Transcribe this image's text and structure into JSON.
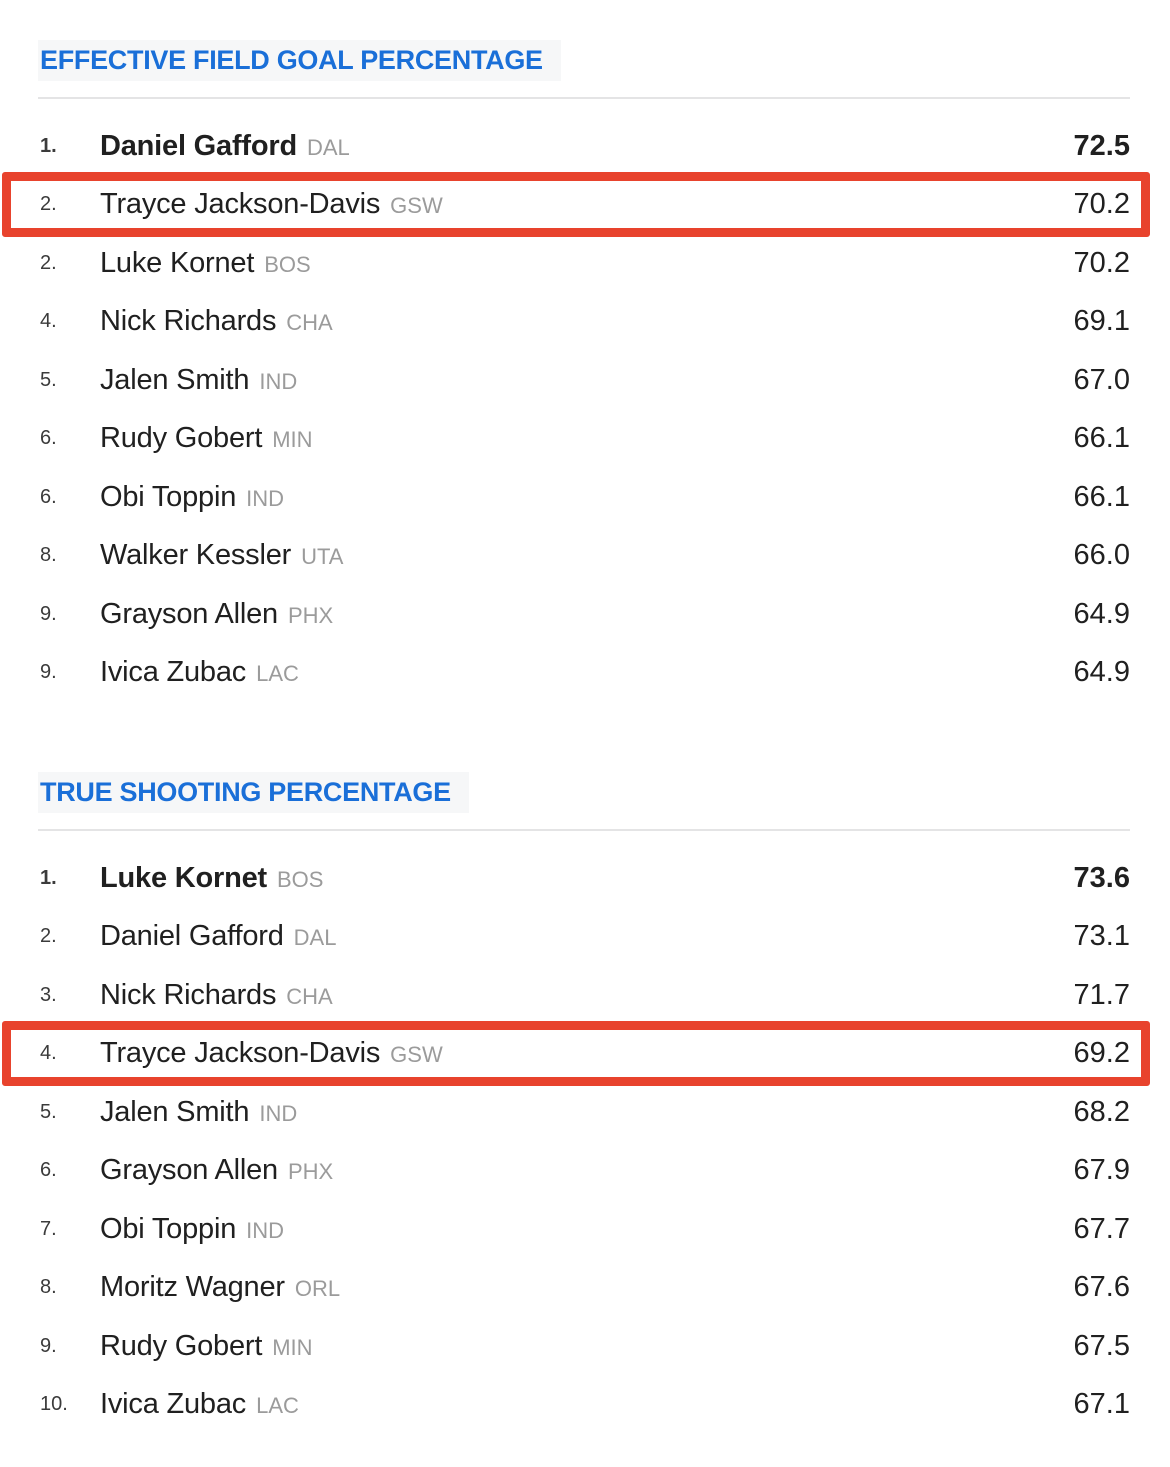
{
  "colors": {
    "accent_blue": "#1a6fd8",
    "highlight_red": "#e8432d",
    "team_gray": "#9b9b9b",
    "divider_gray": "#e4e4e5"
  },
  "sections": [
    {
      "title": "EFFECTIVE FIELD GOAL PERCENTAGE",
      "rows": [
        {
          "rank": "1.",
          "name": "Daniel Gafford",
          "team": "DAL",
          "value": "72.5",
          "emphasis": true,
          "highlighted": false
        },
        {
          "rank": "2.",
          "name": "Trayce Jackson-Davis",
          "team": "GSW",
          "value": "70.2",
          "emphasis": false,
          "highlighted": true
        },
        {
          "rank": "2.",
          "name": "Luke Kornet",
          "team": "BOS",
          "value": "70.2",
          "emphasis": false,
          "highlighted": false
        },
        {
          "rank": "4.",
          "name": "Nick Richards",
          "team": "CHA",
          "value": "69.1",
          "emphasis": false,
          "highlighted": false
        },
        {
          "rank": "5.",
          "name": "Jalen Smith",
          "team": "IND",
          "value": "67.0",
          "emphasis": false,
          "highlighted": false
        },
        {
          "rank": "6.",
          "name": "Rudy Gobert",
          "team": "MIN",
          "value": "66.1",
          "emphasis": false,
          "highlighted": false
        },
        {
          "rank": "6.",
          "name": "Obi Toppin",
          "team": "IND",
          "value": "66.1",
          "emphasis": false,
          "highlighted": false
        },
        {
          "rank": "8.",
          "name": "Walker Kessler",
          "team": "UTA",
          "value": "66.0",
          "emphasis": false,
          "highlighted": false
        },
        {
          "rank": "9.",
          "name": "Grayson Allen",
          "team": "PHX",
          "value": "64.9",
          "emphasis": false,
          "highlighted": false
        },
        {
          "rank": "9.",
          "name": "Ivica Zubac",
          "team": "LAC",
          "value": "64.9",
          "emphasis": false,
          "highlighted": false
        }
      ]
    },
    {
      "title": "TRUE SHOOTING PERCENTAGE",
      "rows": [
        {
          "rank": "1.",
          "name": "Luke Kornet",
          "team": "BOS",
          "value": "73.6",
          "emphasis": true,
          "highlighted": false
        },
        {
          "rank": "2.",
          "name": "Daniel Gafford",
          "team": "DAL",
          "value": "73.1",
          "emphasis": false,
          "highlighted": false
        },
        {
          "rank": "3.",
          "name": "Nick Richards",
          "team": "CHA",
          "value": "71.7",
          "emphasis": false,
          "highlighted": false
        },
        {
          "rank": "4.",
          "name": "Trayce Jackson-Davis",
          "team": "GSW",
          "value": "69.2",
          "emphasis": false,
          "highlighted": true
        },
        {
          "rank": "5.",
          "name": "Jalen Smith",
          "team": "IND",
          "value": "68.2",
          "emphasis": false,
          "highlighted": false
        },
        {
          "rank": "6.",
          "name": "Grayson Allen",
          "team": "PHX",
          "value": "67.9",
          "emphasis": false,
          "highlighted": false
        },
        {
          "rank": "7.",
          "name": "Obi Toppin",
          "team": "IND",
          "value": "67.7",
          "emphasis": false,
          "highlighted": false
        },
        {
          "rank": "8.",
          "name": "Moritz Wagner",
          "team": "ORL",
          "value": "67.6",
          "emphasis": false,
          "highlighted": false
        },
        {
          "rank": "9.",
          "name": "Rudy Gobert",
          "team": "MIN",
          "value": "67.5",
          "emphasis": false,
          "highlighted": false
        },
        {
          "rank": "10.",
          "name": "Ivica Zubac",
          "team": "LAC",
          "value": "67.1",
          "emphasis": false,
          "highlighted": false
        }
      ]
    }
  ]
}
